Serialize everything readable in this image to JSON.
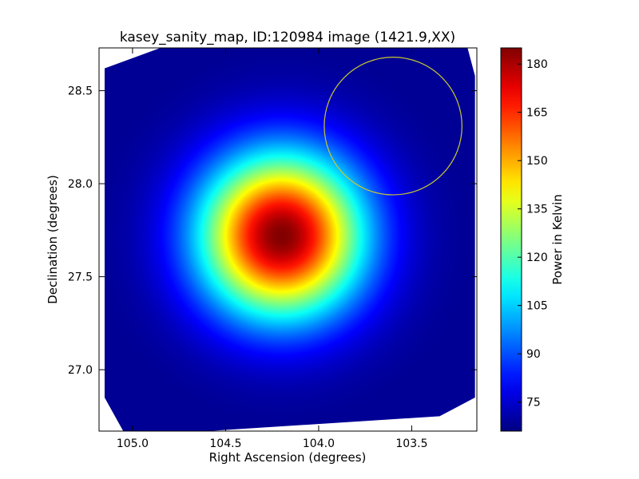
{
  "chart_data": {
    "type": "heatmap",
    "title": "kasey_sanity_map, ID:120984 image (1421.9,XX)",
    "xlabel": "Right Ascension (degrees)",
    "ylabel": "Declination (degrees)",
    "colorbar_label": "Power in Kelvin",
    "colormap": "jet",
    "xlim": [
      105.18,
      103.15
    ],
    "ylim": [
      26.67,
      28.73
    ],
    "x_inverted": true,
    "xticks": [
      105.0,
      104.5,
      104.0,
      103.5
    ],
    "xtick_labels": [
      "105.0",
      "104.5",
      "104.0",
      "103.5"
    ],
    "yticks": [
      27.0,
      27.5,
      28.0,
      28.5
    ],
    "ytick_labels": [
      "27.0",
      "27.5",
      "28.0",
      "28.5"
    ],
    "color_range": [
      66,
      185
    ],
    "colorbar_ticks": [
      75,
      90,
      105,
      120,
      135,
      150,
      165,
      180
    ],
    "colorbar_tick_labels": [
      "75",
      "90",
      "105",
      "120",
      "135",
      "150",
      "165",
      "180"
    ],
    "peak": {
      "ra": 104.2,
      "dec": 27.72,
      "value": 185
    },
    "background_value": 68,
    "circle": {
      "ra": 103.6,
      "dec": 28.31,
      "radius_deg": 0.37,
      "color": "#c8c832"
    },
    "footprint": [
      [
        105.15,
        28.62
      ],
      [
        104.85,
        28.73
      ],
      [
        103.2,
        28.73
      ],
      [
        103.16,
        28.58
      ],
      [
        103.16,
        26.85
      ],
      [
        103.35,
        26.75
      ],
      [
        104.6,
        26.67
      ],
      [
        105.05,
        26.67
      ],
      [
        105.15,
        26.85
      ]
    ]
  }
}
